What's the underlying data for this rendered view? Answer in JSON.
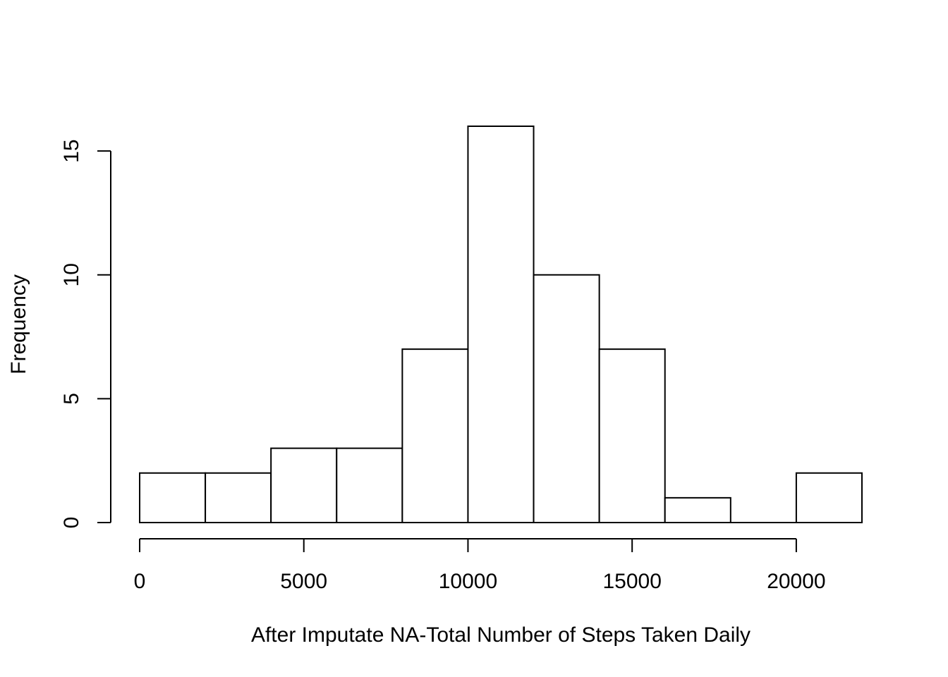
{
  "chart_data": {
    "type": "bar",
    "subtype": "histogram",
    "bins": [
      {
        "x0": 0,
        "x1": 2000,
        "count": 2
      },
      {
        "x0": 2000,
        "x1": 4000,
        "count": 2
      },
      {
        "x0": 4000,
        "x1": 6000,
        "count": 3
      },
      {
        "x0": 6000,
        "x1": 8000,
        "count": 3
      },
      {
        "x0": 8000,
        "x1": 10000,
        "count": 7
      },
      {
        "x0": 10000,
        "x1": 12000,
        "count": 16
      },
      {
        "x0": 12000,
        "x1": 14000,
        "count": 10
      },
      {
        "x0": 14000,
        "x1": 16000,
        "count": 7
      },
      {
        "x0": 16000,
        "x1": 18000,
        "count": 1
      },
      {
        "x0": 18000,
        "x1": 20000,
        "count": 0
      },
      {
        "x0": 20000,
        "x1": 22000,
        "count": 2
      }
    ],
    "xlabel": "After Imputate NA-Total Number of Steps Taken Daily",
    "ylabel": "Frequency",
    "xlim": [
      0,
      22000
    ],
    "ylim": [
      0,
      16
    ],
    "xticks": [
      "0",
      "5000",
      "10000",
      "15000",
      "20000"
    ],
    "yticks": [
      "0",
      "5",
      "10",
      "15"
    ],
    "grid": false,
    "legend": "none"
  }
}
